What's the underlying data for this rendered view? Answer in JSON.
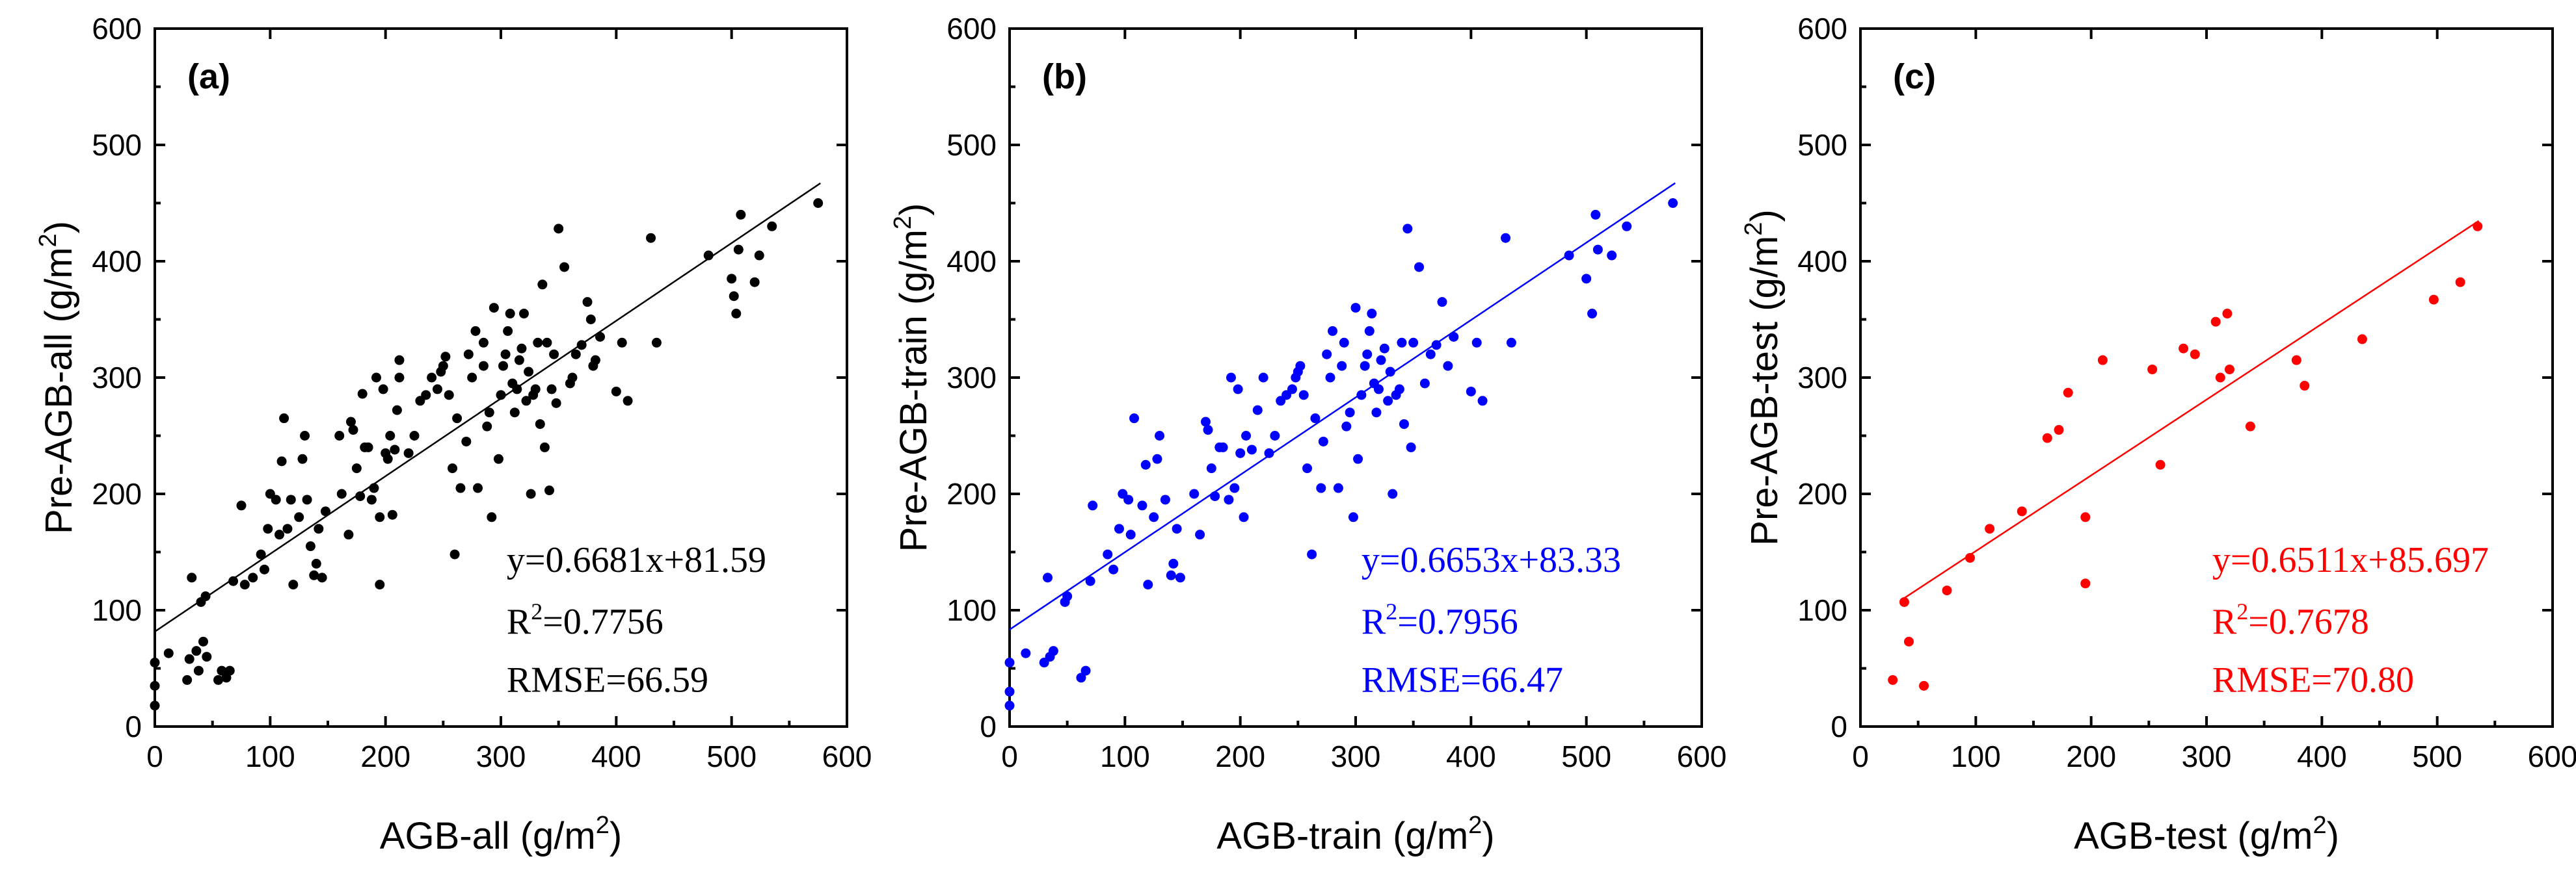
{
  "figure": {
    "panel_count": 3
  },
  "chart_data": [
    {
      "type": "scatter",
      "panel_label": "(a)",
      "xlabel": "AGB-all (g/m",
      "ylabel": "Pre-AGB-all (g/m",
      "unit_sup": "2",
      "unit_close": ")",
      "xlim": [
        0,
        600
      ],
      "ylim": [
        0,
        600
      ],
      "xticks": [
        "0",
        "100",
        "200",
        "300",
        "400",
        "500",
        "600"
      ],
      "yticks": [
        "0",
        "100",
        "200",
        "300",
        "400",
        "500",
        "600"
      ],
      "color": "#000000",
      "fit": {
        "slope": 0.6681,
        "intercept": 81.59,
        "x_range": [
          0,
          577
        ]
      },
      "annotations": {
        "equation": "y=0.6681x+81.59",
        "r2_prefix": "R",
        "r2_sup": "2",
        "r2_value": "=0.7756",
        "rmse": "RMSE=66.59"
      },
      "points": [
        [
          0,
          18
        ],
        [
          0,
          35
        ],
        [
          0,
          55
        ],
        [
          12,
          63
        ],
        [
          28,
          40
        ],
        [
          30,
          58
        ],
        [
          32,
          128
        ],
        [
          36,
          65
        ],
        [
          38,
          48
        ],
        [
          40,
          107
        ],
        [
          42,
          73
        ],
        [
          44,
          112
        ],
        [
          45,
          60
        ],
        [
          55,
          40
        ],
        [
          58,
          48
        ],
        [
          62,
          42
        ],
        [
          65,
          48
        ],
        [
          68,
          125
        ],
        [
          75,
          190
        ],
        [
          78,
          122
        ],
        [
          85,
          128
        ],
        [
          92,
          148
        ],
        [
          95,
          135
        ],
        [
          98,
          170
        ],
        [
          100,
          200
        ],
        [
          105,
          195
        ],
        [
          108,
          165
        ],
        [
          110,
          228
        ],
        [
          112,
          265
        ],
        [
          115,
          170
        ],
        [
          118,
          195
        ],
        [
          120,
          122
        ],
        [
          125,
          180
        ],
        [
          128,
          230
        ],
        [
          130,
          250
        ],
        [
          132,
          195
        ],
        [
          135,
          155
        ],
        [
          138,
          130
        ],
        [
          140,
          140
        ],
        [
          142,
          170
        ],
        [
          145,
          128
        ],
        [
          148,
          185
        ],
        [
          160,
          250
        ],
        [
          162,
          200
        ],
        [
          168,
          165
        ],
        [
          170,
          262
        ],
        [
          172,
          255
        ],
        [
          175,
          222
        ],
        [
          178,
          198
        ],
        [
          180,
          286
        ],
        [
          182,
          240
        ],
        [
          185,
          240
        ],
        [
          188,
          195
        ],
        [
          190,
          205
        ],
        [
          192,
          300
        ],
        [
          195,
          122
        ],
        [
          195,
          180
        ],
        [
          198,
          290
        ],
        [
          200,
          235
        ],
        [
          202,
          230
        ],
        [
          204,
          250
        ],
        [
          206,
          182
        ],
        [
          208,
          238
        ],
        [
          210,
          272
        ],
        [
          212,
          300
        ],
        [
          212,
          315
        ],
        [
          220,
          235
        ],
        [
          225,
          250
        ],
        [
          230,
          280
        ],
        [
          235,
          285
        ],
        [
          240,
          300
        ],
        [
          245,
          290
        ],
        [
          248,
          305
        ],
        [
          250,
          310
        ],
        [
          252,
          318
        ],
        [
          255,
          285
        ],
        [
          258,
          222
        ],
        [
          260,
          148
        ],
        [
          262,
          265
        ],
        [
          265,
          205
        ],
        [
          270,
          245
        ],
        [
          272,
          320
        ],
        [
          275,
          300
        ],
        [
          278,
          340
        ],
        [
          280,
          205
        ],
        [
          285,
          310
        ],
        [
          285,
          330
        ],
        [
          288,
          258
        ],
        [
          290,
          270
        ],
        [
          292,
          180
        ],
        [
          294,
          360
        ],
        [
          298,
          230
        ],
        [
          300,
          285
        ],
        [
          302,
          310
        ],
        [
          304,
          320
        ],
        [
          306,
          340
        ],
        [
          308,
          355
        ],
        [
          310,
          295
        ],
        [
          312,
          270
        ],
        [
          314,
          290
        ],
        [
          316,
          315
        ],
        [
          318,
          325
        ],
        [
          320,
          355
        ],
        [
          322,
          280
        ],
        [
          324,
          305
        ],
        [
          326,
          200
        ],
        [
          328,
          285
        ],
        [
          330,
          290
        ],
        [
          332,
          330
        ],
        [
          334,
          260
        ],
        [
          336,
          380
        ],
        [
          338,
          240
        ],
        [
          340,
          330
        ],
        [
          342,
          203
        ],
        [
          344,
          290
        ],
        [
          346,
          320
        ],
        [
          348,
          278
        ],
        [
          350,
          428
        ],
        [
          355,
          395
        ],
        [
          360,
          295
        ],
        [
          362,
          300
        ],
        [
          365,
          320
        ],
        [
          370,
          328
        ],
        [
          375,
          365
        ],
        [
          378,
          350
        ],
        [
          380,
          310
        ],
        [
          382,
          315
        ],
        [
          386,
          335
        ],
        [
          400,
          288
        ],
        [
          405,
          330
        ],
        [
          410,
          280
        ],
        [
          430,
          420
        ],
        [
          435,
          330
        ],
        [
          480,
          405
        ],
        [
          500,
          385
        ],
        [
          502,
          370
        ],
        [
          504,
          355
        ],
        [
          506,
          410
        ],
        [
          508,
          440
        ],
        [
          520,
          382
        ],
        [
          524,
          405
        ],
        [
          535,
          430
        ],
        [
          575,
          450
        ]
      ]
    },
    {
      "type": "scatter",
      "panel_label": "(b)",
      "xlabel": "AGB-train (g/m",
      "ylabel": "Pre-AGB-train (g/m",
      "unit_sup": "2",
      "unit_close": ")",
      "xlim": [
        0,
        600
      ],
      "ylim": [
        0,
        600
      ],
      "xticks": [
        "0",
        "100",
        "200",
        "300",
        "400",
        "500",
        "600"
      ],
      "yticks": [
        "0",
        "100",
        "200",
        "300",
        "400",
        "500",
        "600"
      ],
      "color": "#0000ff",
      "fit": {
        "slope": 0.6653,
        "intercept": 83.33,
        "x_range": [
          0,
          577
        ]
      },
      "annotations": {
        "equation": "y=0.6653x+83.33",
        "r2_prefix": "R",
        "r2_sup": "2",
        "r2_value": "=0.7956",
        "rmse": "RMSE=66.47"
      },
      "points": [
        [
          0,
          18
        ],
        [
          0,
          30
        ],
        [
          0,
          55
        ],
        [
          14,
          63
        ],
        [
          30,
          55
        ],
        [
          33,
          128
        ],
        [
          35,
          60
        ],
        [
          38,
          65
        ],
        [
          48,
          107
        ],
        [
          50,
          112
        ],
        [
          62,
          42
        ],
        [
          66,
          48
        ],
        [
          70,
          125
        ],
        [
          72,
          190
        ],
        [
          85,
          148
        ],
        [
          90,
          135
        ],
        [
          95,
          170
        ],
        [
          98,
          200
        ],
        [
          103,
          195
        ],
        [
          105,
          165
        ],
        [
          108,
          265
        ],
        [
          115,
          190
        ],
        [
          118,
          225
        ],
        [
          120,
          122
        ],
        [
          125,
          180
        ],
        [
          128,
          230
        ],
        [
          130,
          250
        ],
        [
          135,
          195
        ],
        [
          140,
          130
        ],
        [
          142,
          140
        ],
        [
          145,
          170
        ],
        [
          148,
          128
        ],
        [
          160,
          200
        ],
        [
          165,
          165
        ],
        [
          170,
          262
        ],
        [
          172,
          255
        ],
        [
          175,
          222
        ],
        [
          178,
          198
        ],
        [
          182,
          240
        ],
        [
          185,
          240
        ],
        [
          190,
          195
        ],
        [
          192,
          300
        ],
        [
          195,
          205
        ],
        [
          198,
          290
        ],
        [
          200,
          235
        ],
        [
          203,
          180
        ],
        [
          205,
          250
        ],
        [
          210,
          238
        ],
        [
          215,
          272
        ],
        [
          220,
          300
        ],
        [
          225,
          235
        ],
        [
          230,
          250
        ],
        [
          235,
          280
        ],
        [
          240,
          285
        ],
        [
          245,
          290
        ],
        [
          248,
          300
        ],
        [
          250,
          305
        ],
        [
          252,
          310
        ],
        [
          255,
          285
        ],
        [
          258,
          222
        ],
        [
          262,
          148
        ],
        [
          265,
          265
        ],
        [
          270,
          205
        ],
        [
          272,
          245
        ],
        [
          275,
          320
        ],
        [
          278,
          300
        ],
        [
          280,
          340
        ],
        [
          285,
          205
        ],
        [
          288,
          310
        ],
        [
          290,
          330
        ],
        [
          292,
          258
        ],
        [
          295,
          270
        ],
        [
          298,
          180
        ],
        [
          300,
          360
        ],
        [
          302,
          230
        ],
        [
          305,
          285
        ],
        [
          308,
          310
        ],
        [
          310,
          320
        ],
        [
          312,
          340
        ],
        [
          314,
          355
        ],
        [
          316,
          295
        ],
        [
          318,
          270
        ],
        [
          320,
          290
        ],
        [
          322,
          315
        ],
        [
          325,
          325
        ],
        [
          328,
          280
        ],
        [
          330,
          305
        ],
        [
          332,
          200
        ],
        [
          335,
          285
        ],
        [
          338,
          290
        ],
        [
          340,
          330
        ],
        [
          342,
          260
        ],
        [
          345,
          428
        ],
        [
          348,
          240
        ],
        [
          350,
          330
        ],
        [
          355,
          395
        ],
        [
          360,
          295
        ],
        [
          365,
          320
        ],
        [
          370,
          328
        ],
        [
          375,
          365
        ],
        [
          380,
          310
        ],
        [
          385,
          335
        ],
        [
          400,
          288
        ],
        [
          405,
          330
        ],
        [
          410,
          280
        ],
        [
          430,
          420
        ],
        [
          435,
          330
        ],
        [
          485,
          405
        ],
        [
          500,
          385
        ],
        [
          505,
          355
        ],
        [
          508,
          440
        ],
        [
          510,
          410
        ],
        [
          522,
          405
        ],
        [
          535,
          430
        ],
        [
          575,
          450
        ]
      ]
    },
    {
      "type": "scatter",
      "panel_label": "(c)",
      "xlabel": "AGB-test (g/m",
      "ylabel": "Pre-AGB-test (g/m",
      "unit_sup": "2",
      "unit_close": ")",
      "xlim": [
        0,
        600
      ],
      "ylim": [
        0,
        600
      ],
      "xticks": [
        "0",
        "100",
        "200",
        "300",
        "400",
        "500",
        "600"
      ],
      "yticks": [
        "0",
        "100",
        "200",
        "300",
        "400",
        "500",
        "600"
      ],
      "color": "#ff0000",
      "fit": {
        "slope": 0.6511,
        "intercept": 85.697,
        "x_range": [
          38,
          536
        ]
      },
      "annotations": {
        "equation": "y=0.6511x+85.697",
        "r2_prefix": "R",
        "r2_sup": "2",
        "r2_value": "=0.7678",
        "rmse": "RMSE=70.80"
      },
      "points": [
        [
          28,
          40
        ],
        [
          38,
          107
        ],
        [
          42,
          73
        ],
        [
          55,
          35
        ],
        [
          75,
          117
        ],
        [
          95,
          145
        ],
        [
          112,
          170
        ],
        [
          140,
          185
        ],
        [
          162,
          248
        ],
        [
          172,
          255
        ],
        [
          180,
          287
        ],
        [
          195,
          180
        ],
        [
          195,
          123
        ],
        [
          210,
          315
        ],
        [
          253,
          307
        ],
        [
          260,
          225
        ],
        [
          280,
          325
        ],
        [
          290,
          320
        ],
        [
          308,
          348
        ],
        [
          312,
          300
        ],
        [
          318,
          355
        ],
        [
          320,
          307
        ],
        [
          338,
          258
        ],
        [
          378,
          315
        ],
        [
          385,
          293
        ],
        [
          435,
          333
        ],
        [
          497,
          367
        ],
        [
          520,
          382
        ],
        [
          535,
          430
        ]
      ]
    }
  ]
}
